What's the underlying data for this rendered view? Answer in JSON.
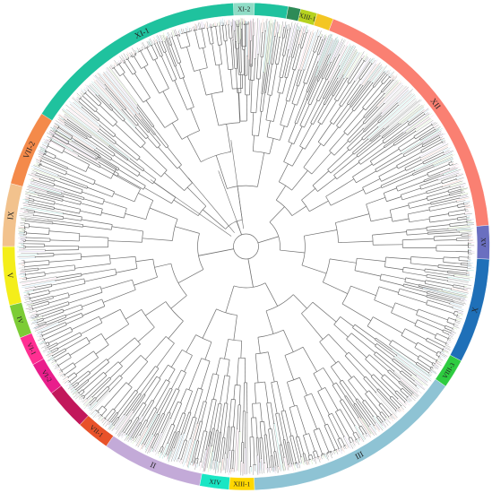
{
  "tree": {
    "branch_color": "#6f6f6f",
    "tip_colors": [
      "#7fd4c8",
      "#f3b3a7",
      "#c8b4e0",
      "#9fd0e6",
      "#f6c1d8",
      "#bfe6a0",
      "#b9b9b9"
    ],
    "clades": [
      {
        "label": "XI-1",
        "color": "#1fc29e",
        "start_deg": -62,
        "end_deg": 10
      },
      {
        "label": "",
        "color": "#2e8b57",
        "start_deg": 10,
        "end_deg": 13
      },
      {
        "label": "XIII-1",
        "color": "#b6d21f",
        "start_deg": 13,
        "end_deg": 17
      },
      {
        "label": "",
        "color": "#f3c623",
        "start_deg": 17,
        "end_deg": 21
      },
      {
        "label": "XII",
        "color": "#fa8072",
        "start_deg": 21,
        "end_deg": 85
      },
      {
        "label": "XV",
        "color": "#6a6fc0",
        "start_deg": 85,
        "end_deg": 93
      },
      {
        "label": "X",
        "color": "#1f70b8",
        "start_deg": 93,
        "end_deg": 118
      },
      {
        "label": "VIII-3",
        "color": "#2ecc40",
        "start_deg": 118,
        "end_deg": 125
      },
      {
        "label": "III",
        "color": "#8ec3d4",
        "start_deg": 125,
        "end_deg": 178
      },
      {
        "label": "XIII-1",
        "color": "#ffd700",
        "start_deg": 178,
        "end_deg": 184
      },
      {
        "label": "XIV",
        "color": "#19e6c4",
        "start_deg": 184,
        "end_deg": 191
      },
      {
        "label": "II",
        "color": "#c3aad8",
        "start_deg": 191,
        "end_deg": 215
      },
      {
        "label": "VII-1",
        "color": "#e8522a",
        "start_deg": 215,
        "end_deg": 223
      },
      {
        "label": "",
        "color": "#c2185b",
        "start_deg": 223,
        "end_deg": 233
      },
      {
        "label": "VI-2",
        "color": "#e91e8c",
        "start_deg": 233,
        "end_deg": 241
      },
      {
        "label": "VI-1",
        "color": "#ff2f92",
        "start_deg": 241,
        "end_deg": 248
      },
      {
        "label": "IV",
        "color": "#7ccc36",
        "start_deg": 248,
        "end_deg": 256
      },
      {
        "label": "V",
        "color": "#f4ee1a",
        "start_deg": 256,
        "end_deg": 270
      },
      {
        "label": "IX",
        "color": "#f2c28d",
        "start_deg": 270,
        "end_deg": 285
      },
      {
        "label": "VII-2",
        "color": "#f48a4a",
        "start_deg": 285,
        "end_deg": 303
      },
      {
        "label": "XI-2",
        "color": "#8fdcc6",
        "start_deg": 357,
        "end_deg": 362
      }
    ]
  }
}
